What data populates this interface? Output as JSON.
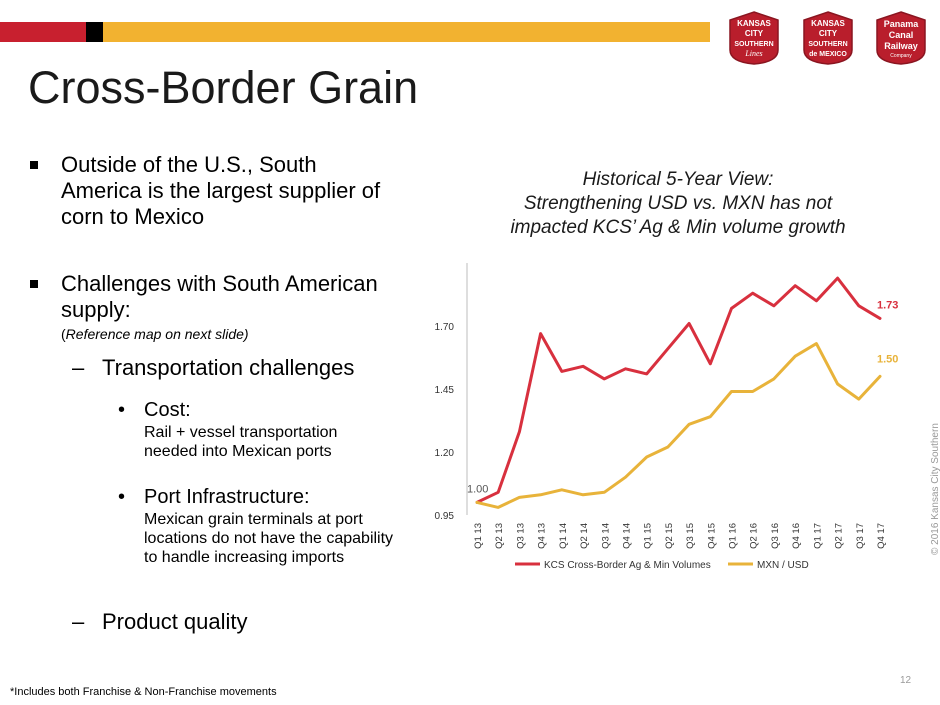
{
  "slide": {
    "title": "Cross-Border Grain",
    "page_number": "12",
    "copyright": "© 2016 Kansas City Southern",
    "footnote": "*Includes both Franchise & Non-Franchise movements"
  },
  "logos": {
    "kcs": {
      "label": "Kansas City Southern Lines",
      "lines": [
        "KANSAS",
        "CITY",
        "SOUTHERN",
        "Lines"
      ]
    },
    "kcsm": {
      "label": "Kansas City Southern de México",
      "lines": [
        "KANSAS",
        "CITY",
        "SOUTHERN",
        "de MEXICO"
      ]
    },
    "pcr": {
      "label": "Panama Canal Railway Company",
      "lines": [
        "Panama",
        "Canal",
        "Railway",
        "Company"
      ]
    }
  },
  "colors": {
    "red": "#d8303e",
    "gold": "#e8b33a",
    "bar_red": "#c8202f",
    "bar_yellow": "#f2b230",
    "logo_red": "#b91e2c"
  },
  "bullets": {
    "b1": "Outside of the U.S., South America is the largest supplier of corn to Mexico",
    "b2": "Challenges with South American supply:",
    "b2_note_paren": "(",
    "b2_note": "Reference map on next slide)",
    "dash_mark": "–",
    "dash1": "Transportation challenges",
    "dot": "•",
    "sub1_head": "Cost:",
    "sub1_body": "Rail + vessel transportation needed into Mexican ports",
    "sub2_head": "Port Infrastructure:",
    "sub2_body": "Mexican grain terminals at port locations do not have the capability to handle increasing imports",
    "dash2": "Product quality"
  },
  "chart_title_lines": [
    "Historical 5-Year View:",
    "Strengthening USD vs. MXN has not",
    "impacted KCS’ Ag & Min volume growth"
  ],
  "chart_data": {
    "type": "line",
    "title": "Historical 5-Year View: Strengthening USD vs. MXN has not impacted KCS’ Ag & Min volume growth",
    "categories": [
      "Q1 13",
      "Q2 13",
      "Q3 13",
      "Q4 13",
      "Q1 14",
      "Q2 14",
      "Q3 14",
      "Q4 14",
      "Q1 15",
      "Q2 15",
      "Q3 15",
      "Q4 15",
      "Q1 16",
      "Q2 16",
      "Q3 16",
      "Q4 16",
      "Q1 17",
      "Q2 17",
      "Q3 17",
      "Q4 17"
    ],
    "ylim": [
      0.95,
      1.95
    ],
    "yticks": [
      "0.95",
      "1.20",
      "1.45",
      "1.70"
    ],
    "legend_position": "bottom",
    "start_label": "1.00",
    "series": [
      {
        "name": "KCS Cross-Border Ag & Min Volumes",
        "color": "#d8303e",
        "end_label": "1.73",
        "values": [
          1.0,
          1.04,
          1.28,
          1.67,
          1.52,
          1.54,
          1.49,
          1.53,
          1.51,
          1.61,
          1.71,
          1.55,
          1.77,
          1.83,
          1.78,
          1.86,
          1.8,
          1.89,
          1.78,
          1.73
        ]
      },
      {
        "name": "MXN / USD",
        "color": "#e8b33a",
        "end_label": "1.50",
        "values": [
          1.0,
          0.98,
          1.02,
          1.03,
          1.05,
          1.03,
          1.04,
          1.1,
          1.18,
          1.22,
          1.31,
          1.34,
          1.44,
          1.44,
          1.49,
          1.58,
          1.63,
          1.47,
          1.41,
          1.5
        ]
      }
    ]
  }
}
